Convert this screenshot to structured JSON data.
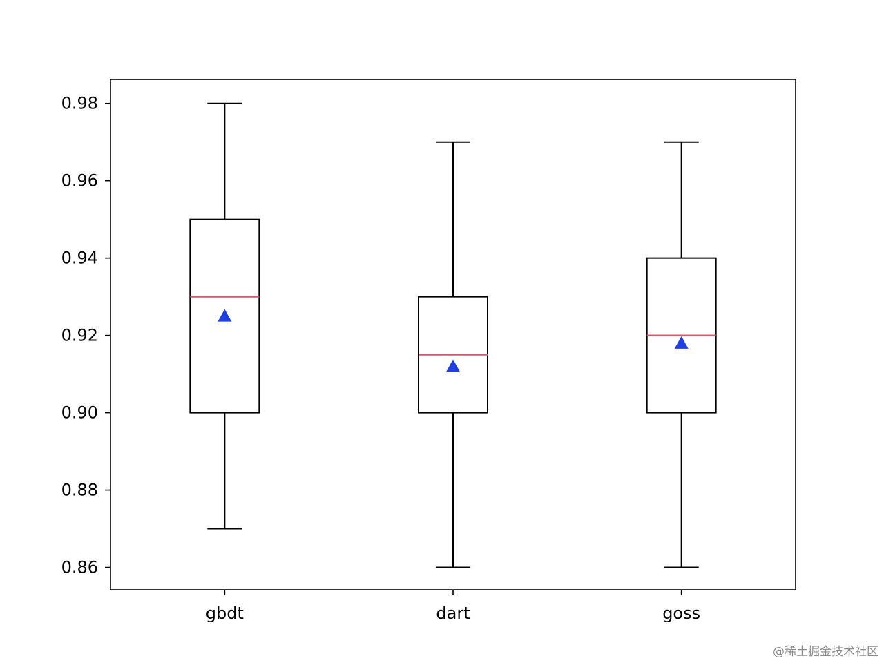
{
  "chart_data": {
    "type": "box",
    "categories": [
      "gbdt",
      "dart",
      "goss"
    ],
    "boxes": [
      {
        "category": "gbdt",
        "whisker_low": 0.87,
        "q1": 0.9,
        "median": 0.93,
        "q3": 0.95,
        "whisker_high": 0.98,
        "mean": 0.925
      },
      {
        "category": "dart",
        "whisker_low": 0.86,
        "q1": 0.9,
        "median": 0.915,
        "q3": 0.93,
        "whisker_high": 0.97,
        "mean": 0.912
      },
      {
        "category": "goss",
        "whisker_low": 0.86,
        "q1": 0.9,
        "median": 0.92,
        "q3": 0.94,
        "whisker_high": 0.97,
        "mean": 0.918
      }
    ],
    "yticks": [
      "0.86",
      "0.88",
      "0.90",
      "0.92",
      "0.94",
      "0.96",
      "0.98"
    ],
    "ylim": [
      0.8542,
      0.9862
    ],
    "grid": false,
    "colors": {
      "box": "#000000",
      "median": "#d9546b",
      "mean_marker": "#1f3fe0"
    }
  },
  "watermark": "@稀土掘金技术社区"
}
